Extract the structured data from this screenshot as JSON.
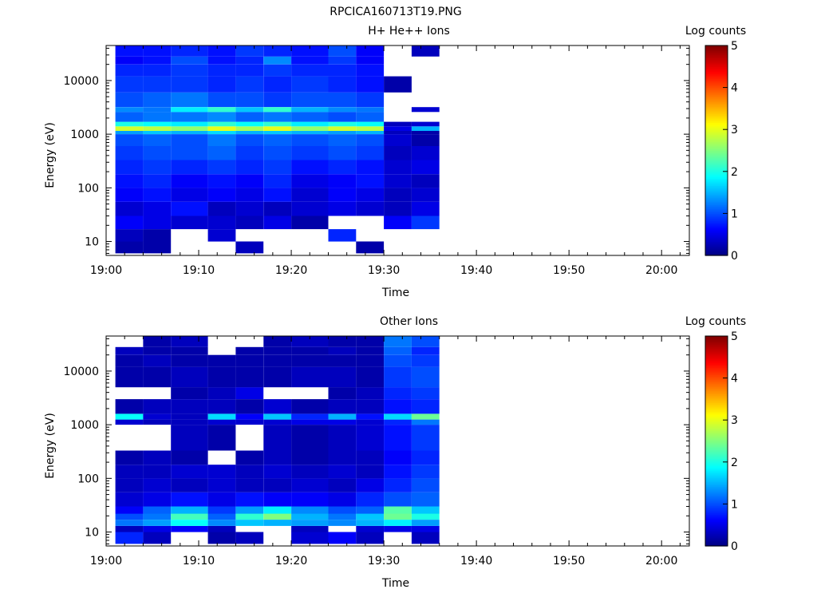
{
  "figure_title": "RPCICA160713T19.PNG",
  "colorbar": {
    "label": "Log counts",
    "ticks": [
      "0",
      "1",
      "2",
      "3",
      "4",
      "5"
    ],
    "colormap": [
      "#000080",
      "#0000ff",
      "#0080ff",
      "#00ffff",
      "#80ff80",
      "#ffff00",
      "#ff8000",
      "#ff0000",
      "#800000"
    ]
  },
  "chart_data": [
    {
      "type": "heatmap",
      "title": "H+ He++ Ions",
      "xlabel": "Time",
      "ylabel": "Energy (eV)",
      "y_scale": "log",
      "xlim": [
        "19:00",
        "20:03"
      ],
      "ylim": [
        5.5,
        45000
      ],
      "clim": [
        0,
        5
      ],
      "x_ticks": [
        "19:00",
        "19:10",
        "19:20",
        "19:30",
        "19:40",
        "19:50",
        "20:00"
      ],
      "y_ticks": [
        "10",
        "100",
        "1000",
        "10000"
      ],
      "column_start_times": [
        "19:01",
        "19:04",
        "19:07",
        "19:11",
        "19:14",
        "19:17",
        "19:20",
        "19:24",
        "19:27",
        "19:30",
        "19:33"
      ],
      "column_end_time": "19:36",
      "rows": [
        {
          "energy": [
            6,
            10
          ],
          "values": [
            0.2,
            0.2,
            null,
            null,
            0.3,
            null,
            null,
            null,
            0.2,
            null,
            null
          ]
        },
        {
          "energy": [
            10,
            17
          ],
          "values": [
            0.3,
            0.2,
            null,
            0.4,
            null,
            null,
            null,
            0.8,
            null,
            null,
            null
          ]
        },
        {
          "energy": [
            17,
            30
          ],
          "values": [
            0.6,
            0.5,
            0.4,
            0.4,
            0.3,
            0.5,
            0.2,
            null,
            null,
            0.6,
            0.9
          ]
        },
        {
          "energy": [
            30,
            55
          ],
          "values": [
            0.4,
            0.5,
            0.7,
            0.3,
            0.4,
            0.3,
            0.4,
            0.5,
            0.4,
            0.3,
            0.5
          ]
        },
        {
          "energy": [
            55,
            100
          ],
          "values": [
            0.6,
            0.7,
            0.5,
            0.6,
            0.5,
            0.7,
            0.4,
            0.6,
            0.5,
            0.3,
            0.4
          ]
        },
        {
          "energy": [
            100,
            180
          ],
          "values": [
            0.7,
            0.8,
            0.6,
            0.7,
            0.6,
            0.8,
            0.5,
            0.6,
            0.7,
            0.4,
            0.3
          ]
        },
        {
          "energy": [
            180,
            330
          ],
          "values": [
            0.8,
            0.9,
            0.8,
            0.9,
            0.8,
            0.9,
            0.7,
            0.8,
            0.7,
            0.4,
            0.5
          ]
        },
        {
          "energy": [
            330,
            600
          ],
          "values": [
            0.9,
            1.0,
            1.0,
            1.1,
            0.9,
            1.0,
            0.9,
            1.0,
            0.9,
            0.3,
            0.4
          ]
        },
        {
          "energy": [
            600,
            1000
          ],
          "values": [
            1.0,
            1.1,
            1.0,
            1.2,
            1.0,
            1.1,
            1.0,
            1.1,
            1.0,
            0.4,
            0.2
          ]
        },
        {
          "energy": [
            1000,
            1150
          ],
          "values": [
            1.4,
            1.6,
            1.5,
            1.7,
            1.5,
            1.6,
            1.5,
            1.4,
            1.5,
            0.3,
            0.2
          ]
        },
        {
          "energy": [
            1150,
            1400
          ],
          "values": [
            2.9,
            2.8,
            2.6,
            3.0,
            2.7,
            3.0,
            2.6,
            2.9,
            2.8,
            0.5,
            1.5
          ]
        },
        {
          "energy": [
            1400,
            1700
          ],
          "values": [
            2.0,
            1.9,
            1.8,
            2.1,
            1.9,
            2.1,
            1.8,
            2.0,
            1.9,
            0.3,
            0.4
          ]
        },
        {
          "energy": [
            1700,
            2600
          ],
          "values": [
            1.1,
            1.2,
            1.2,
            1.3,
            1.1,
            1.2,
            1.1,
            1.0,
            1.1,
            null,
            null
          ]
        },
        {
          "energy": [
            2600,
            3200
          ],
          "values": [
            1.3,
            1.2,
            1.8,
            2.1,
            1.6,
            2.1,
            1.5,
            1.3,
            1.2,
            null,
            0.4
          ]
        },
        {
          "energy": [
            3200,
            6000
          ],
          "values": [
            1.0,
            1.1,
            1.2,
            1.0,
            1.0,
            0.9,
            1.0,
            1.0,
            0.9,
            null,
            null
          ]
        },
        {
          "energy": [
            6000,
            12000
          ],
          "values": [
            0.9,
            0.9,
            0.9,
            0.8,
            0.9,
            0.8,
            0.9,
            0.8,
            0.7,
            0.2,
            null
          ]
        },
        {
          "energy": [
            12000,
            20000
          ],
          "values": [
            0.8,
            0.8,
            0.9,
            0.8,
            0.8,
            0.9,
            0.8,
            0.8,
            0.7,
            null,
            null
          ]
        },
        {
          "energy": [
            20000,
            28000
          ],
          "values": [
            0.6,
            0.7,
            1.0,
            0.7,
            0.8,
            1.3,
            0.7,
            0.9,
            0.6,
            null,
            null
          ]
        },
        {
          "energy": [
            28000,
            45000
          ],
          "values": [
            0.7,
            0.7,
            0.8,
            0.7,
            0.9,
            0.8,
            0.7,
            1.0,
            0.6,
            null,
            0.3
          ]
        }
      ]
    },
    {
      "type": "heatmap",
      "title": "Other Ions",
      "xlabel": "Time",
      "ylabel": "Energy (eV)",
      "y_scale": "log",
      "xlim": [
        "19:00",
        "20:03"
      ],
      "ylim": [
        5.5,
        45000
      ],
      "clim": [
        0,
        5
      ],
      "x_ticks": [
        "19:00",
        "19:10",
        "19:20",
        "19:30",
        "19:40",
        "19:50",
        "20:00"
      ],
      "y_ticks": [
        "10",
        "100",
        "1000",
        "10000"
      ],
      "column_start_times": [
        "19:01",
        "19:04",
        "19:07",
        "19:11",
        "19:14",
        "19:17",
        "19:20",
        "19:24",
        "19:27",
        "19:30",
        "19:33"
      ],
      "column_end_time": "19:36",
      "rows": [
        {
          "energy": [
            6,
            10
          ],
          "values": [
            0.8,
            0.3,
            null,
            0.2,
            0.3,
            null,
            0.4,
            0.6,
            0.3,
            null,
            0.3
          ]
        },
        {
          "energy": [
            10,
            13
          ],
          "values": [
            0.3,
            0.5,
            0.6,
            0.3,
            null,
            null,
            0.3,
            null,
            0.4,
            0.5,
            0.5
          ]
        },
        {
          "energy": [
            13,
            17
          ],
          "values": [
            1.2,
            1.4,
            1.9,
            1.3,
            1.6,
            1.5,
            1.4,
            1.3,
            1.5,
            1.8,
            1.4
          ]
        },
        {
          "energy": [
            17,
            22
          ],
          "values": [
            1.0,
            1.2,
            2.2,
            1.1,
            2.1,
            2.5,
            1.5,
            1.2,
            1.6,
            2.4,
            2.0
          ]
        },
        {
          "energy": [
            22,
            30
          ],
          "values": [
            0.6,
            1.1,
            1.5,
            0.9,
            1.4,
            1.8,
            1.3,
            1.0,
            1.1,
            2.3,
            1.6
          ]
        },
        {
          "energy": [
            30,
            55
          ],
          "values": [
            0.4,
            0.5,
            0.7,
            0.5,
            0.7,
            0.6,
            0.6,
            0.5,
            0.8,
            1.0,
            1.1
          ]
        },
        {
          "energy": [
            55,
            100
          ],
          "values": [
            0.3,
            0.4,
            0.3,
            0.4,
            0.3,
            0.3,
            0.4,
            0.3,
            0.5,
            0.8,
            1.0
          ]
        },
        {
          "energy": [
            100,
            180
          ],
          "values": [
            0.3,
            0.3,
            0.4,
            0.4,
            0.3,
            0.4,
            0.3,
            0.4,
            0.3,
            0.7,
            0.9
          ]
        },
        {
          "energy": [
            180,
            330
          ],
          "values": [
            0.2,
            0.3,
            0.2,
            null,
            0.2,
            0.3,
            0.2,
            0.3,
            0.3,
            0.6,
            0.8
          ]
        },
        {
          "energy": [
            330,
            1000
          ],
          "values": [
            null,
            null,
            0.3,
            0.2,
            null,
            0.3,
            0.2,
            0.3,
            0.4,
            0.7,
            0.9
          ]
        },
        {
          "energy": [
            1000,
            1250
          ],
          "values": [
            0.4,
            0.3,
            0.3,
            0.4,
            0.4,
            0.4,
            0.5,
            0.5,
            0.4,
            0.8,
            1.2
          ]
        },
        {
          "energy": [
            1250,
            1600
          ],
          "values": [
            1.9,
            0.4,
            0.3,
            1.7,
            0.6,
            1.6,
            0.8,
            1.5,
            0.7,
            1.7,
            2.4
          ]
        },
        {
          "energy": [
            1600,
            3000
          ],
          "values": [
            0.2,
            0.3,
            0.3,
            0.3,
            0.2,
            0.4,
            0.2,
            0.3,
            0.3,
            0.7,
            0.8
          ]
        },
        {
          "energy": [
            3000,
            5000
          ],
          "values": [
            null,
            null,
            0.2,
            0.3,
            0.5,
            null,
            null,
            0.2,
            0.3,
            0.8,
            0.9
          ]
        },
        {
          "energy": [
            5000,
            12000
          ],
          "values": [
            0.2,
            0.2,
            0.3,
            0.2,
            0.2,
            0.2,
            0.3,
            0.3,
            0.2,
            0.9,
            1.0
          ]
        },
        {
          "energy": [
            12000,
            20000
          ],
          "values": [
            0.2,
            0.3,
            0.2,
            0.2,
            0.2,
            0.2,
            0.2,
            0.2,
            0.2,
            1.0,
            0.9
          ]
        },
        {
          "energy": [
            20000,
            28000
          ],
          "values": [
            0.3,
            0.2,
            0.2,
            null,
            0.2,
            0.2,
            0.2,
            0.3,
            0.2,
            1.1,
            0.8
          ]
        },
        {
          "energy": [
            28000,
            45000
          ],
          "values": [
            null,
            0.2,
            0.3,
            null,
            null,
            0.2,
            0.3,
            0.2,
            0.2,
            1.2,
            1.0
          ]
        }
      ]
    }
  ]
}
